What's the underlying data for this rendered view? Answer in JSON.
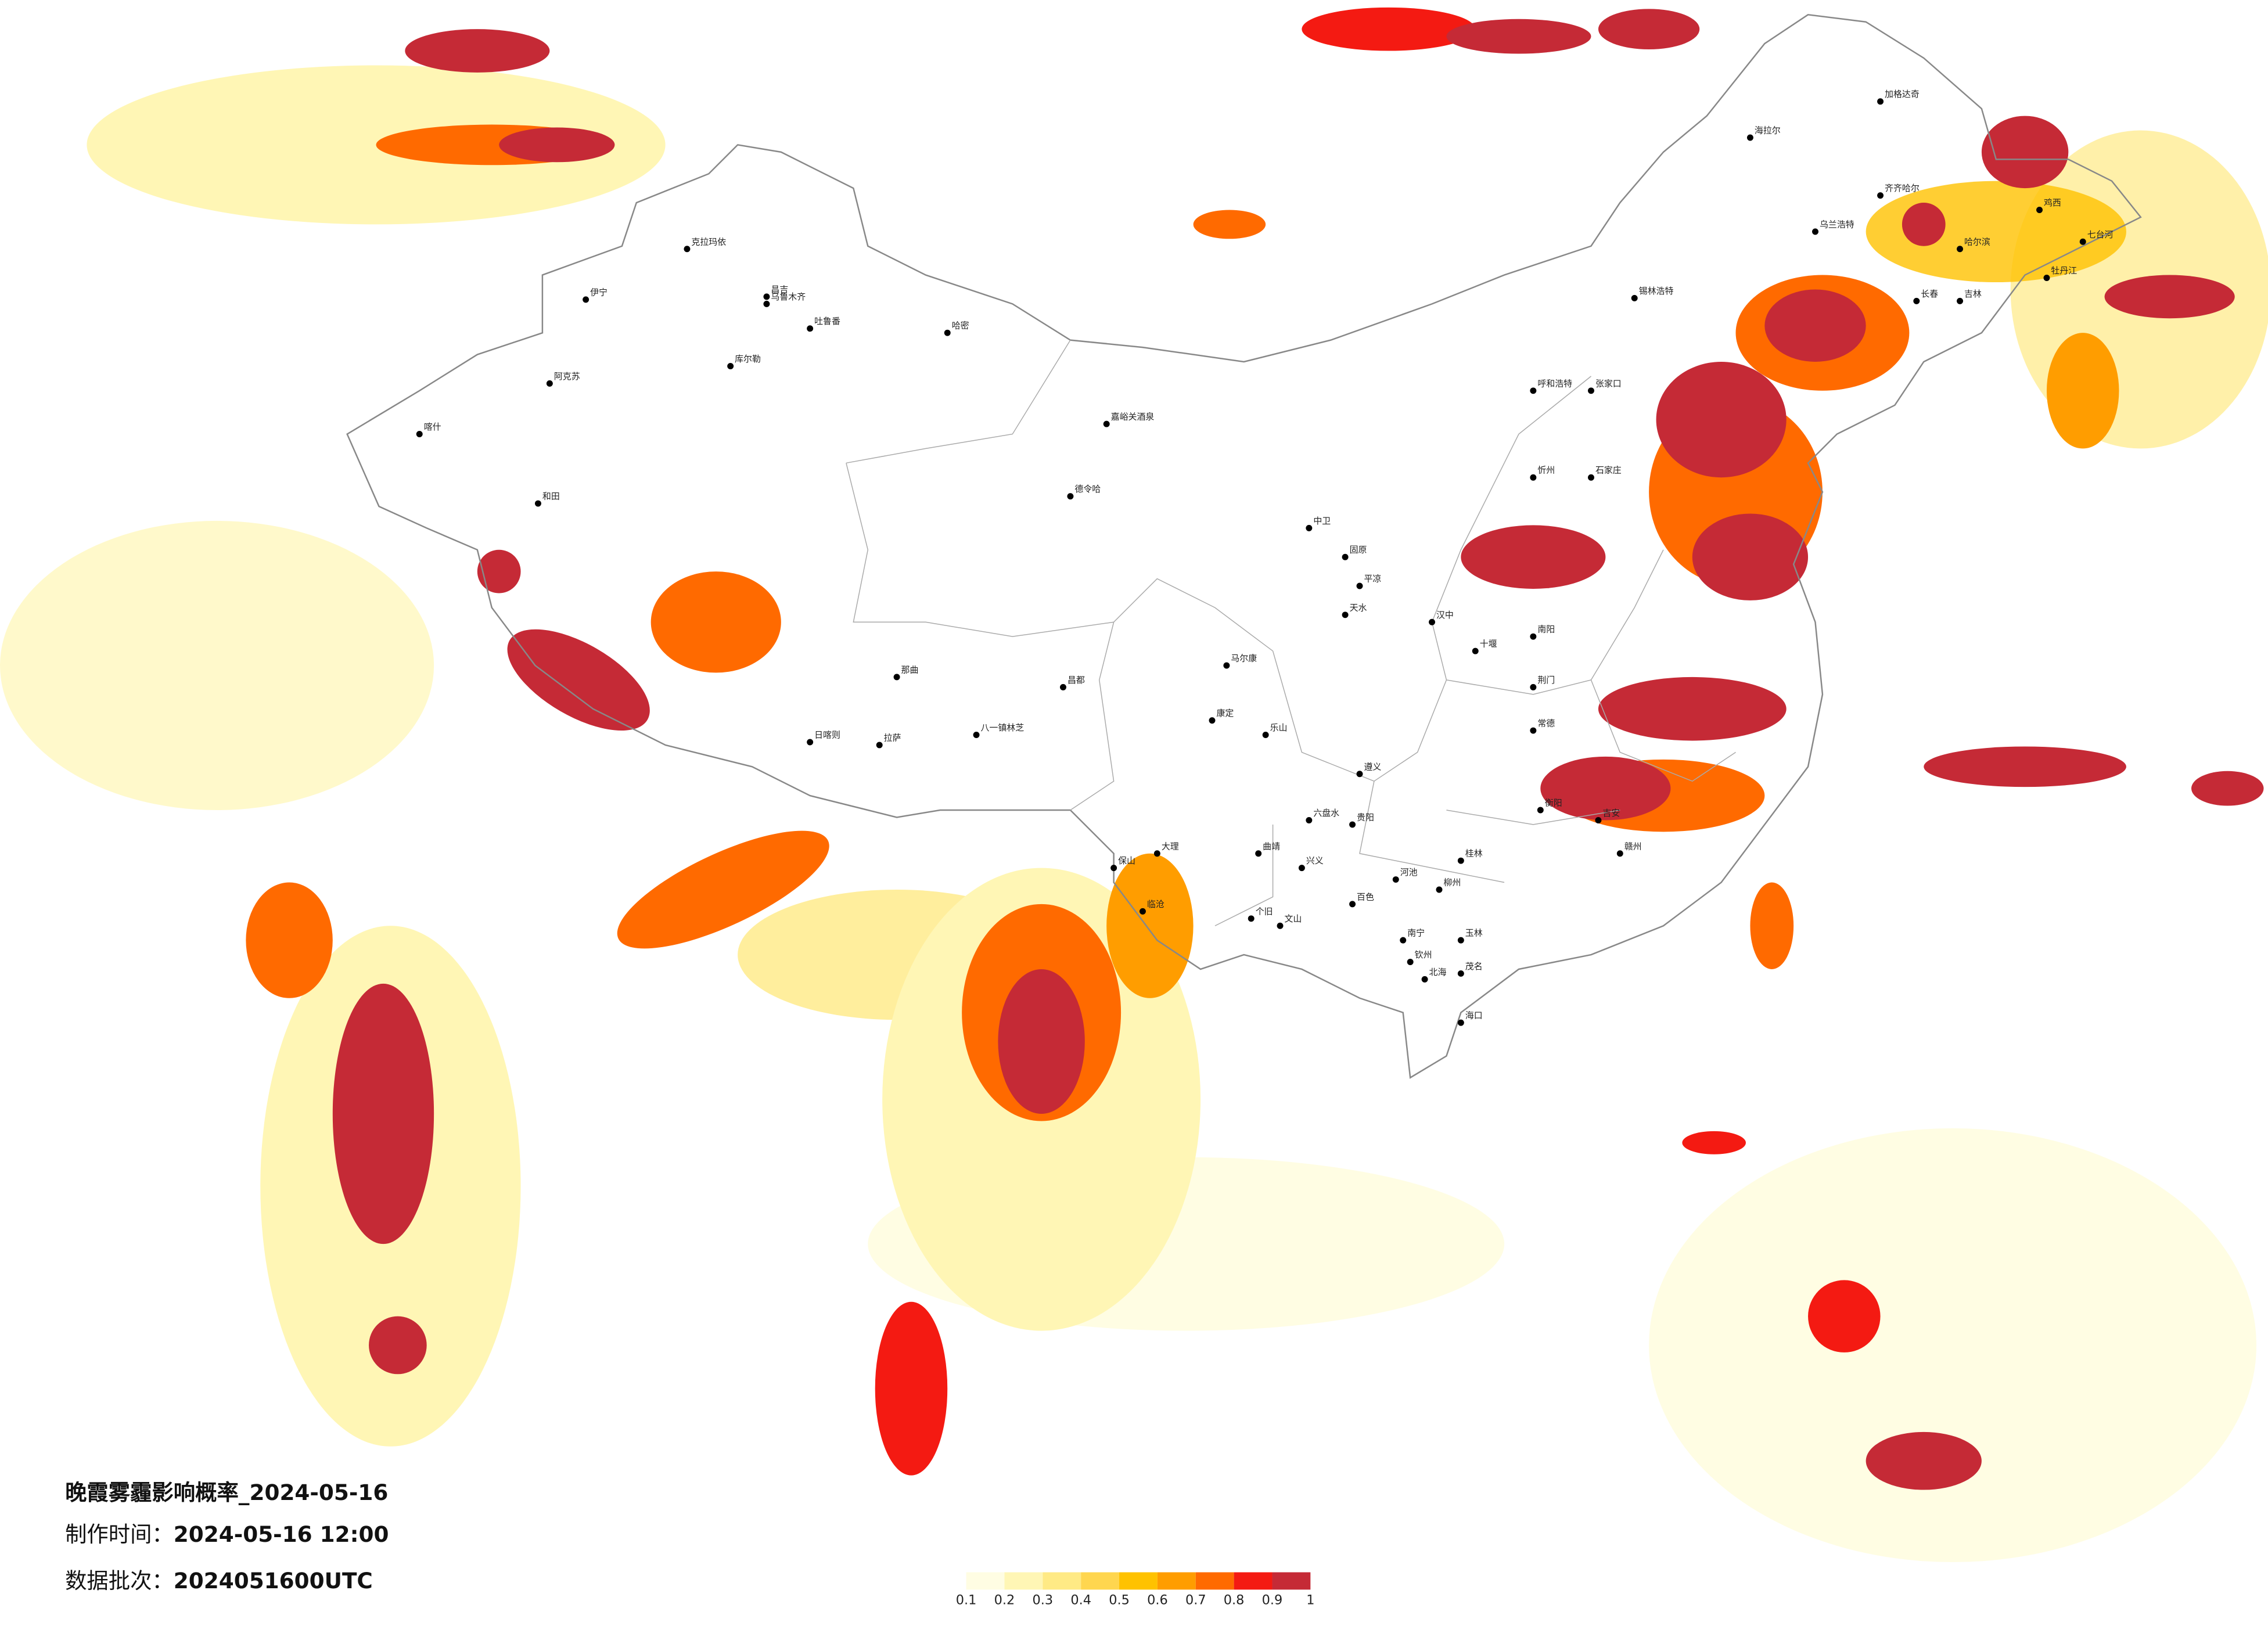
{
  "map": {
    "title": "晚霞雾霾影响概率_2024-05-16",
    "production_time": {
      "label": "制作时间：",
      "value": "2024-05-16 12:00"
    },
    "data_batch": {
      "label": "数据批次：",
      "value": "2024051600UTC"
    },
    "colorbar": {
      "ticks": [
        0.1,
        0.2,
        0.3,
        0.4,
        0.5,
        0.6,
        0.7,
        0.8,
        0.9,
        1
      ],
      "colors": [
        "#fffde3",
        "#fff6b5",
        "#ffea85",
        "#ffd64f",
        "#ffc200",
        "#ff9d00",
        "#ff6a00",
        "#f41a12",
        "#c52a36"
      ]
    },
    "cities": [
      "克拉玛依",
      "伊宁",
      "昌吉",
      "乌鲁木齐",
      "吐鲁番",
      "哈密",
      "库尔勒",
      "阿克苏",
      "喀什",
      "和田",
      "德令哈",
      "嘉峪关酒泉",
      "拉萨",
      "日喀则",
      "八一镇林芝",
      "那曲",
      "昌都",
      "海拉尔",
      "加格达奇",
      "齐齐哈尔",
      "乌兰浩特",
      "哈尔滨",
      "长春",
      "吉林",
      "牡丹江",
      "七台河",
      "鸡西",
      "锡林浩特",
      "呼和浩特",
      "张家口",
      "石家庄",
      "忻州",
      "马尔康",
      "康定",
      "乐山",
      "遵义",
      "贵阳",
      "六盘水",
      "曲靖",
      "个旧",
      "文山",
      "百色",
      "南宁",
      "玉林",
      "钦州",
      "北海",
      "茂名",
      "海口",
      "保山",
      "大理",
      "临沧",
      "桂林",
      "柳州",
      "河池",
      "兴义",
      "赣州",
      "吉安",
      "衡阳",
      "常德",
      "荆门",
      "十堰",
      "汉中",
      "天水",
      "平凉",
      "固原",
      "中卫",
      "南阳"
    ]
  }
}
